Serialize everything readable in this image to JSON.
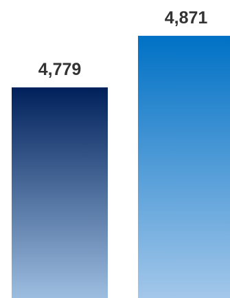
{
  "chart_data": {
    "type": "bar",
    "categories": [
      "",
      ""
    ],
    "values": [
      4779,
      4871
    ],
    "data_labels": [
      "4,779",
      "4,871"
    ],
    "title": "",
    "xlabel": "",
    "ylabel": "",
    "grid": false,
    "colors": [
      {
        "top": "#00205b",
        "bottom": "#9dbde0"
      },
      {
        "top": "#0071c5",
        "bottom": "#a3c7ea"
      }
    ]
  }
}
